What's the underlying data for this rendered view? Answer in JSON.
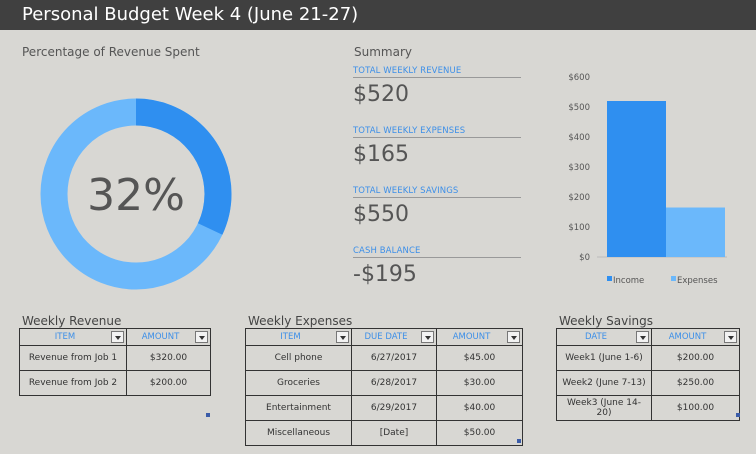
{
  "header": {
    "title": "Personal Budget Week 4  (June 21-27)"
  },
  "donut": {
    "title": "Percentage of Revenue Spent",
    "percent_label": "32%",
    "spent_fraction": 0.32,
    "color_spent": "#2f8ff0",
    "color_remaining": "#6bb8fb"
  },
  "summary": {
    "title": "Summary",
    "items": [
      {
        "label": "TOTAL WEEKLY REVENUE",
        "value": "$520"
      },
      {
        "label": "TOTAL WEEKLY EXPENSES",
        "value": "$165"
      },
      {
        "label": "TOTAL WEEKLY SAVINGS",
        "value": "$550"
      },
      {
        "label": "CASH BALANCE",
        "value": "-$195"
      }
    ]
  },
  "chart_data": {
    "type": "bar",
    "categories": [
      ""
    ],
    "series": [
      {
        "name": "Income",
        "values": [
          520
        ],
        "color": "#2f8ff0"
      },
      {
        "name": "Expenses",
        "values": [
          165
        ],
        "color": "#6bb8fb"
      }
    ],
    "y_ticks": [
      "$0",
      "$100",
      "$200",
      "$300",
      "$400",
      "$500",
      "$600"
    ],
    "ylim": [
      0,
      600
    ],
    "grid": false,
    "legend": "bottom"
  },
  "revenue": {
    "title": "Weekly Revenue",
    "headers": [
      "ITEM",
      "AMOUNT"
    ],
    "rows": [
      [
        "Revenue from Job 1",
        "$320.00"
      ],
      [
        "Revenue from Job 2",
        "$200.00"
      ]
    ]
  },
  "expenses": {
    "title": "Weekly Expenses",
    "headers": [
      "ITEM",
      "DUE DATE",
      "AMOUNT"
    ],
    "rows": [
      [
        "Cell phone",
        "6/27/2017",
        "$45.00"
      ],
      [
        "Groceries",
        "6/28/2017",
        "$30.00"
      ],
      [
        "Entertainment",
        "6/29/2017",
        "$40.00"
      ],
      [
        "Miscellaneous",
        "[Date]",
        "$50.00"
      ]
    ]
  },
  "savings": {
    "title": "Weekly Savings",
    "headers": [
      "DATE",
      "AMOUNT"
    ],
    "rows": [
      [
        "Week1 (June 1-6)",
        "$200.00"
      ],
      [
        "Week2 (June 7-13)",
        "$250.00"
      ],
      [
        "Week3 (June 14-20)",
        "$100.00"
      ]
    ]
  }
}
